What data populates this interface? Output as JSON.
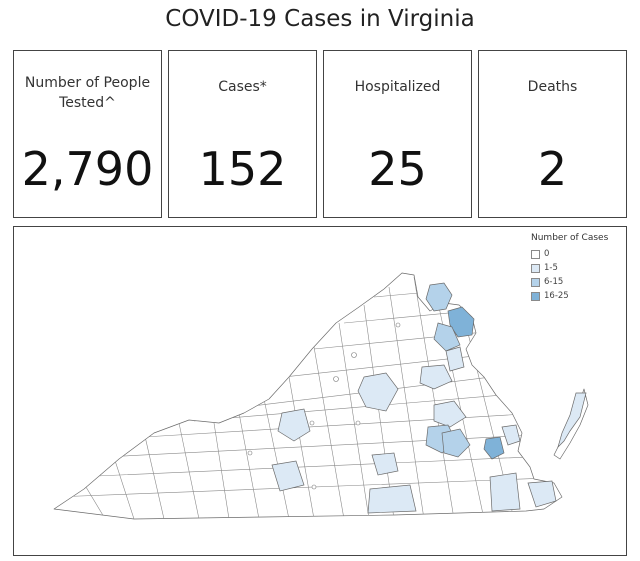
{
  "title": "COVID-19 Cases in Virginia",
  "cards": [
    {
      "label": "Number of People Tested^",
      "value": "2,790"
    },
    {
      "label": "Cases*",
      "value": "152"
    },
    {
      "label": "Hospitalized",
      "value": "25"
    },
    {
      "label": "Deaths",
      "value": "2"
    }
  ],
  "legend": {
    "title": "Number of Cases",
    "items": [
      {
        "label": "0",
        "color": "#ffffff"
      },
      {
        "label": "1-5",
        "color": "#dce9f5"
      },
      {
        "label": "6-15",
        "color": "#b4d2ea"
      },
      {
        "label": "16-25",
        "color": "#7fb2d8"
      }
    ]
  }
}
